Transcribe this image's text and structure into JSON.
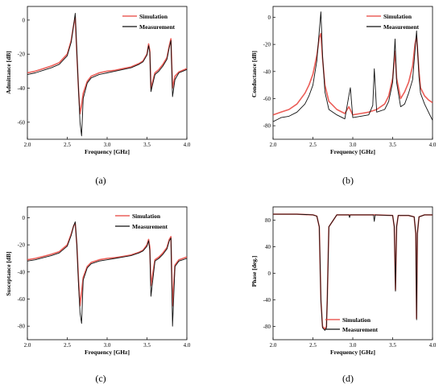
{
  "figure_labels": [
    "(a)",
    "(b)",
    "(c)",
    "(d)"
  ],
  "chart_data": [
    {
      "type": "line",
      "panel_label": "(a)",
      "title": "",
      "xlabel": "Frequency [GHz]",
      "ylabel": "Admittance [dB]",
      "xlim": [
        2.0,
        4.0
      ],
      "ylim": [
        -70,
        8
      ],
      "xticks": [
        2.0,
        2.5,
        3.0,
        3.5,
        4.0
      ],
      "yticks": [
        -60,
        -40,
        -20,
        0
      ],
      "xtick_labels": [
        "2.0",
        "2.5",
        "3.0",
        "3.5",
        "4.0"
      ],
      "ytick_labels": [
        "-60",
        "-40",
        "-20",
        "0"
      ],
      "legend": "top-right",
      "grid": false,
      "colors": {
        "Simulation": "#e8413a",
        "Measurement": "#111111"
      },
      "series": [
        {
          "name": "Simulation",
          "x": [
            2.0,
            2.1,
            2.2,
            2.3,
            2.4,
            2.5,
            2.55,
            2.58,
            2.6,
            2.62,
            2.64,
            2.66,
            2.68,
            2.7,
            2.75,
            2.8,
            2.9,
            3.0,
            3.1,
            3.2,
            3.3,
            3.4,
            3.45,
            3.5,
            3.52,
            3.535,
            3.55,
            3.6,
            3.65,
            3.7,
            3.75,
            3.78,
            3.8,
            3.82,
            3.85,
            3.9,
            3.95,
            4.0
          ],
          "y": [
            -31,
            -30,
            -28.5,
            -27,
            -25,
            -20,
            -12,
            -3,
            2,
            -20,
            -40,
            -55,
            -50,
            -43,
            -36,
            -33,
            -31,
            -30,
            -29.5,
            -28.5,
            -27.5,
            -25.5,
            -24,
            -20,
            -14,
            -18,
            -40,
            -31,
            -29,
            -26,
            -22,
            -15,
            -11,
            -40,
            -33,
            -30.5,
            -29.5,
            -28.5
          ]
        },
        {
          "name": "Measurement",
          "x": [
            2.0,
            2.1,
            2.2,
            2.3,
            2.4,
            2.5,
            2.55,
            2.58,
            2.6,
            2.62,
            2.64,
            2.66,
            2.68,
            2.7,
            2.75,
            2.8,
            2.9,
            3.0,
            3.1,
            3.2,
            3.3,
            3.4,
            3.45,
            3.5,
            3.52,
            3.535,
            3.55,
            3.6,
            3.65,
            3.7,
            3.75,
            3.78,
            3.8,
            3.82,
            3.85,
            3.9,
            3.95,
            4.0
          ],
          "y": [
            -32,
            -31,
            -29.5,
            -28,
            -26,
            -21,
            -13,
            -3,
            4,
            -18,
            -40,
            -60,
            -68,
            -46,
            -37,
            -34,
            -32,
            -31,
            -30,
            -29,
            -28,
            -26,
            -24.5,
            -20.5,
            -15,
            -19,
            -42,
            -32,
            -30,
            -27,
            -23,
            -16,
            -12,
            -45,
            -35,
            -31,
            -30,
            -29
          ]
        }
      ]
    },
    {
      "type": "line",
      "panel_label": "(b)",
      "title": "",
      "xlabel": "Frequency [GHz]",
      "ylabel": "Conductance [dB]",
      "xlim": [
        2.0,
        4.0
      ],
      "ylim": [
        -90,
        8
      ],
      "xticks": [
        2.0,
        2.5,
        3.0,
        3.5,
        4.0
      ],
      "yticks": [
        -80,
        -60,
        -40,
        -20,
        0
      ],
      "xtick_labels": [
        "2.0",
        "2.5",
        "3.0",
        "3.5",
        "4.0"
      ],
      "ytick_labels": [
        "-80",
        "-60",
        "-40",
        "-20",
        "0"
      ],
      "legend": "top-right",
      "grid": false,
      "colors": {
        "Simulation": "#e8413a",
        "Measurement": "#111111"
      },
      "series": [
        {
          "name": "Simulation",
          "x": [
            2.0,
            2.1,
            2.2,
            2.3,
            2.4,
            2.45,
            2.5,
            2.55,
            2.58,
            2.6,
            2.62,
            2.65,
            2.7,
            2.8,
            2.9,
            2.95,
            3.0,
            3.1,
            3.2,
            3.3,
            3.4,
            3.45,
            3.5,
            3.53,
            3.55,
            3.6,
            3.65,
            3.7,
            3.75,
            3.78,
            3.8,
            3.83,
            3.85,
            3.9,
            3.95,
            4.0
          ],
          "y": [
            -72,
            -70,
            -68,
            -64,
            -56,
            -50,
            -42,
            -28,
            -15,
            -12,
            -30,
            -50,
            -62,
            -68,
            -71,
            -66,
            -72,
            -71,
            -70,
            -68,
            -64,
            -58,
            -45,
            -25,
            -45,
            -60,
            -55,
            -48,
            -36,
            -20,
            -14,
            -40,
            -52,
            -58,
            -61,
            -63
          ]
        },
        {
          "name": "Measurement",
          "x": [
            2.0,
            2.1,
            2.2,
            2.3,
            2.4,
            2.45,
            2.5,
            2.55,
            2.58,
            2.6,
            2.62,
            2.65,
            2.7,
            2.8,
            2.9,
            2.95,
            2.97,
            3.0,
            3.1,
            3.2,
            3.25,
            3.27,
            3.3,
            3.4,
            3.45,
            3.5,
            3.53,
            3.55,
            3.6,
            3.65,
            3.7,
            3.75,
            3.78,
            3.8,
            3.83,
            3.85,
            3.9,
            3.95,
            4.0
          ],
          "y": [
            -77,
            -74,
            -73,
            -70,
            -64,
            -58,
            -50,
            -32,
            -10,
            4,
            -28,
            -55,
            -68,
            -72,
            -75,
            -58,
            -52,
            -74,
            -73,
            -72,
            -65,
            -38,
            -70,
            -68,
            -62,
            -48,
            -16,
            -48,
            -66,
            -64,
            -56,
            -46,
            -25,
            -10,
            -44,
            -56,
            -64,
            -70,
            -76
          ]
        }
      ]
    },
    {
      "type": "line",
      "panel_label": "(c)",
      "title": "",
      "xlabel": "Frequency [GHz]",
      "ylabel": "Susceptance [dB]",
      "xlim": [
        2.0,
        4.0
      ],
      "ylim": [
        -90,
        8
      ],
      "xticks": [
        2.0,
        2.5,
        3.0,
        3.5,
        4.0
      ],
      "yticks": [
        -80,
        -60,
        -40,
        -20,
        0
      ],
      "xtick_labels": [
        "2.0",
        "2.5",
        "3.0",
        "3.5",
        "4.0"
      ],
      "ytick_labels": [
        "-80",
        "-60",
        "-40",
        "-20",
        "0"
      ],
      "legend": "top-right",
      "grid": false,
      "colors": {
        "Simulation": "#e8413a",
        "Measurement": "#111111"
      },
      "series": [
        {
          "name": "Simulation",
          "x": [
            2.0,
            2.1,
            2.2,
            2.3,
            2.4,
            2.5,
            2.55,
            2.58,
            2.6,
            2.62,
            2.64,
            2.66,
            2.68,
            2.7,
            2.75,
            2.8,
            2.9,
            3.0,
            3.1,
            3.2,
            3.3,
            3.4,
            3.45,
            3.5,
            3.52,
            3.535,
            3.55,
            3.6,
            3.65,
            3.7,
            3.75,
            3.78,
            3.8,
            3.82,
            3.85,
            3.9,
            3.95,
            4.0
          ],
          "y": [
            -31,
            -30,
            -28.5,
            -27,
            -25,
            -20,
            -12,
            -6,
            -4,
            -20,
            -45,
            -65,
            -55,
            -44,
            -36,
            -33,
            -31,
            -30,
            -29.5,
            -28.5,
            -27.5,
            -25.5,
            -24,
            -20,
            -16,
            -22,
            -50,
            -31,
            -29,
            -26,
            -22,
            -16,
            -14,
            -65,
            -35,
            -31,
            -30,
            -29
          ]
        },
        {
          "name": "Measurement",
          "x": [
            2.0,
            2.1,
            2.2,
            2.3,
            2.4,
            2.5,
            2.55,
            2.58,
            2.6,
            2.62,
            2.64,
            2.66,
            2.68,
            2.7,
            2.75,
            2.8,
            2.9,
            3.0,
            3.1,
            3.2,
            3.3,
            3.4,
            3.45,
            3.5,
            3.52,
            3.535,
            3.55,
            3.6,
            3.65,
            3.7,
            3.75,
            3.78,
            3.8,
            3.82,
            3.85,
            3.9,
            3.95,
            4.0
          ],
          "y": [
            -32,
            -31,
            -29.5,
            -28,
            -26,
            -21,
            -13,
            -6,
            -3,
            -20,
            -48,
            -70,
            -78,
            -46,
            -37,
            -34,
            -32,
            -31,
            -30,
            -29,
            -28,
            -26,
            -24.5,
            -21,
            -17,
            -24,
            -58,
            -32,
            -30,
            -27,
            -23,
            -17,
            -15,
            -80,
            -36,
            -32,
            -31,
            -30
          ]
        }
      ]
    },
    {
      "type": "line",
      "panel_label": "(d)",
      "title": "",
      "xlabel": "Frequency [GHz]",
      "ylabel": "Phase [deg.]",
      "xlim": [
        2.0,
        4.0
      ],
      "ylim": [
        -100,
        100
      ],
      "xticks": [
        2.0,
        2.5,
        3.0,
        3.5,
        4.0
      ],
      "yticks": [
        -80,
        -40,
        0,
        40,
        80
      ],
      "xtick_labels": [
        "2.0",
        "2.5",
        "3.0",
        "3.5",
        "4.0"
      ],
      "ytick_labels": [
        "-80",
        "-40",
        "0",
        "40",
        "80"
      ],
      "legend": "bottom-center",
      "grid": false,
      "colors": {
        "Simulation": "#e8413a",
        "Measurement": "#111111"
      },
      "series": [
        {
          "name": "Simulation",
          "x": [
            2.0,
            2.3,
            2.5,
            2.55,
            2.58,
            2.6,
            2.62,
            2.65,
            2.67,
            2.68,
            2.7,
            2.8,
            2.95,
            3.0,
            3.27,
            3.5,
            3.52,
            3.535,
            3.55,
            3.57,
            3.7,
            3.77,
            3.79,
            3.8,
            3.81,
            3.83,
            3.9,
            4.0
          ],
          "y": [
            89,
            89,
            88,
            86,
            70,
            -40,
            -80,
            -84,
            -80,
            -40,
            70,
            88,
            88,
            88,
            88,
            87,
            70,
            -25,
            70,
            87,
            87,
            85,
            60,
            -68,
            60,
            85,
            88,
            88
          ]
        },
        {
          "name": "Measurement",
          "x": [
            2.0,
            2.3,
            2.5,
            2.55,
            2.58,
            2.6,
            2.62,
            2.65,
            2.67,
            2.68,
            2.7,
            2.8,
            2.95,
            2.96,
            2.97,
            3.0,
            3.26,
            3.27,
            3.28,
            3.5,
            3.52,
            3.535,
            3.55,
            3.57,
            3.7,
            3.77,
            3.79,
            3.8,
            3.81,
            3.83,
            3.9,
            4.0
          ],
          "y": [
            89,
            89,
            88,
            86,
            70,
            -40,
            -82,
            -86,
            -82,
            -40,
            70,
            88,
            88,
            84,
            88,
            88,
            88,
            78,
            88,
            87,
            70,
            -27,
            70,
            87,
            87,
            85,
            60,
            -70,
            60,
            85,
            88,
            88
          ]
        }
      ]
    }
  ]
}
